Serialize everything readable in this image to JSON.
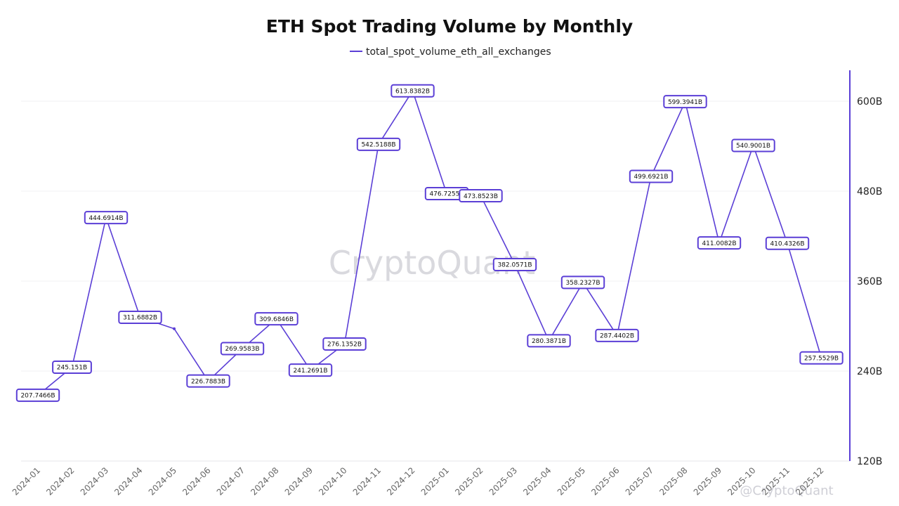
{
  "chart_data": {
    "type": "line",
    "title": "ETH Spot Trading Volume by Monthly",
    "legend": {
      "placement": "top-center"
    },
    "series": [
      {
        "name": "total_spot_volume_eth_all_exchanges",
        "color": "#5b3fd6",
        "values": [
          207.7466,
          245.151,
          444.6914,
          311.6882,
          296.5,
          226.7883,
          269.9583,
          309.6846,
          241.2691,
          276.1352,
          542.5188,
          613.8382,
          476.7255,
          473.8523,
          382.0571,
          280.3871,
          358.2327,
          287.4402,
          499.6921,
          599.3941,
          411.0082,
          540.9001,
          410.4326,
          257.5529
        ],
        "labels": [
          "207.7466B",
          "245.151B",
          "444.6914B",
          "311.6882B",
          "",
          "226.7883B",
          "269.9583B",
          "309.6846B",
          "241.2691B",
          "276.1352B",
          "542.5188B",
          "613.8382B",
          "476.7255B",
          "473.8523B",
          "382.0571B",
          "280.3871B",
          "358.2327B",
          "287.4402B",
          "499.6921B",
          "599.3941B",
          "411.0082B",
          "540.9001B",
          "410.4326B",
          "257.5529B"
        ]
      }
    ],
    "x": [
      "2024-01",
      "2024-02",
      "2024-03",
      "2024-04",
      "2024-05",
      "2024-06",
      "2024-07",
      "2024-08",
      "2024-09",
      "2024-10",
      "2024-11",
      "2024-12",
      "2025-01",
      "2025-02",
      "2025-03",
      "2025-04",
      "2025-05",
      "2025-06",
      "2025-07",
      "2025-08",
      "2025-09",
      "2025-10",
      "2025-11",
      "2025-12"
    ],
    "y_axis": {
      "position": "right",
      "ylim": [
        120,
        630
      ],
      "ticks": [
        120,
        240,
        360,
        480,
        600
      ],
      "tick_labels": [
        "120B",
        "240B",
        "360B",
        "480B",
        "600B"
      ]
    },
    "grid": true
  },
  "watermark": {
    "brand": "CryptoQuant",
    "footer": "@CryptoQuant"
  }
}
